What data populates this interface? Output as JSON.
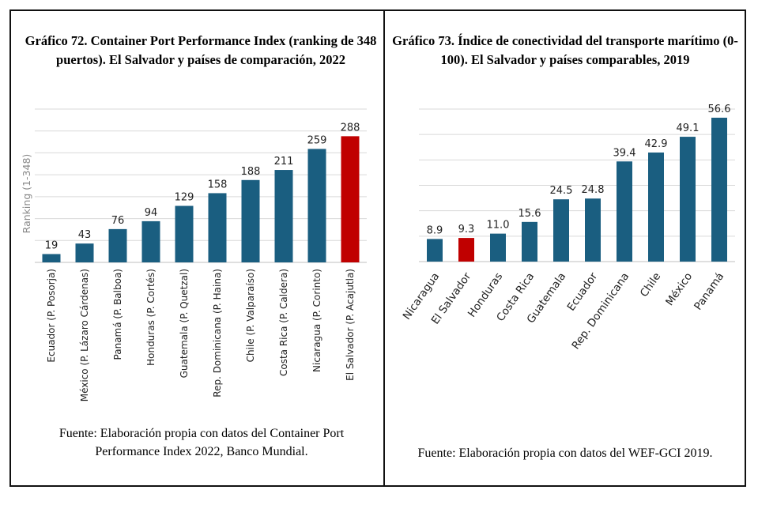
{
  "colors": {
    "bar": "#1a5e80",
    "highlight": "#c00000",
    "grid": "#d9d9d9",
    "axis": "#bfbfbf"
  },
  "left": {
    "title": "Gráfico 72. Container Port Performance Index (ranking de 348 puertos). El Salvador y países de comparación, 2022",
    "source": "Fuente: Elaboración propia con datos del Container Port Performance Index 2022, Banco Mundial."
  },
  "right": {
    "title": "Gráfico 73. Índice de conectividad del transporte marítimo (0-100). El Salvador y países comparables, 2019",
    "source": "Fuente: Elaboración propia con datos del WEF-GCI 2019."
  },
  "chart_data": [
    {
      "type": "bar",
      "title": "Gráfico 72. Container Port Performance Index (ranking de 348 puertos). El Salvador y países de comparación, 2022",
      "ylabel": "Ranking (1-348)",
      "xlabel": "",
      "ylim": [
        0,
        350
      ],
      "grid": true,
      "categories": [
        "Ecuador (P. Posorja)",
        "México (P. Lázaro Cárdenas)",
        "Panamá (P. Balboa)",
        "Honduras (P. Cortés)",
        "Guatemala (P. Quetzal)",
        "Rep. Dominicana (P. Haina)",
        "Chile (P. Valparaíso)",
        "Costa Rica (P. Caldera)",
        "Nicaragua (P. Corinto)",
        "El Salvador (P. Acajutla)"
      ],
      "values": [
        19,
        43,
        76,
        94,
        129,
        158,
        188,
        211,
        259,
        288
      ],
      "highlight": "El Salvador (P. Acajutla)"
    },
    {
      "type": "bar",
      "title": "Gráfico 73. Índice de conectividad del transporte marítimo (0-100). El Salvador y países comparables, 2019",
      "ylabel": "",
      "xlabel": "",
      "ylim": [
        0,
        60
      ],
      "grid": true,
      "categories": [
        "Nicaragua",
        "El Salvador",
        "Honduras",
        "Costa Rica",
        "Guatemala",
        "Ecuador",
        "Rep. Dominicana",
        "Chile",
        "México",
        "Panamá"
      ],
      "values": [
        8.9,
        9.3,
        11.0,
        15.6,
        24.5,
        24.8,
        39.4,
        42.9,
        49.1,
        56.6
      ],
      "value_labels": [
        "8.9",
        "9.3",
        "11.0",
        "15.6",
        "24.5",
        "24.8",
        "39.4",
        "42.9",
        "49.1",
        "56.6"
      ],
      "highlight": "El Salvador"
    }
  ]
}
